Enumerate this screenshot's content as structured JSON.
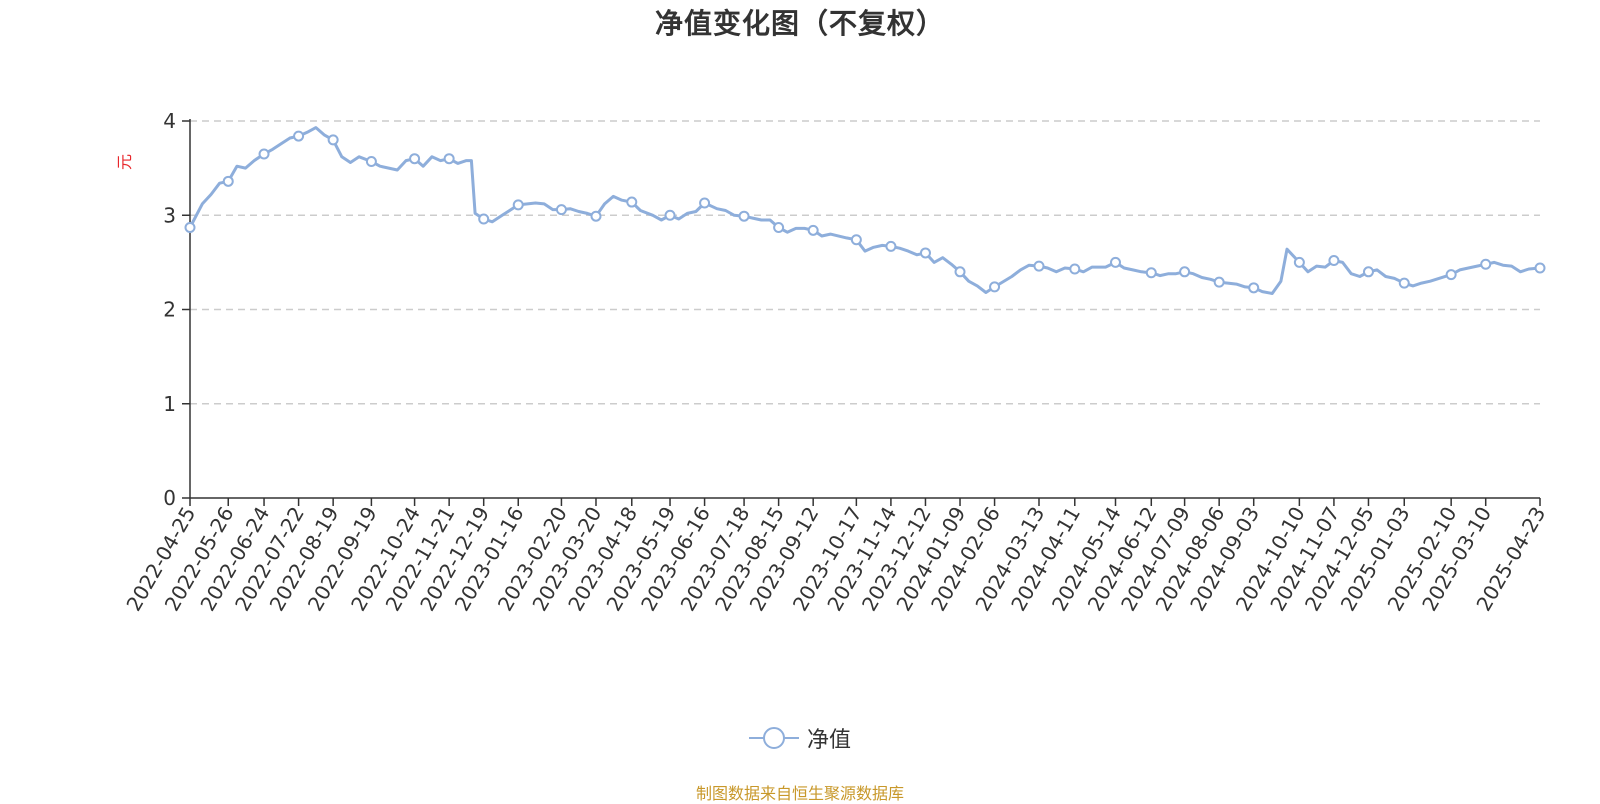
{
  "chart_data": {
    "type": "line",
    "title": "净值变化图（不复权）",
    "y_unit": "元",
    "ylim": [
      0,
      4
    ],
    "y_ticks": [
      0,
      1,
      2,
      3,
      4
    ],
    "grid": "horizontal dashed",
    "legend_position": "bottom-center",
    "x_tick_labels": [
      "2022-04-25",
      "2022-05-26",
      "2022-06-24",
      "2022-07-22",
      "2022-08-19",
      "2022-09-19",
      "2022-10-24",
      "2022-11-21",
      "2022-12-19",
      "2023-01-16",
      "2023-02-20",
      "2023-03-20",
      "2023-04-18",
      "2023-05-19",
      "2023-06-16",
      "2023-07-18",
      "2023-08-15",
      "2023-09-12",
      "2023-10-17",
      "2023-11-14",
      "2023-12-12",
      "2024-01-09",
      "2024-02-06",
      "2024-03-13",
      "2024-04-11",
      "2024-05-14",
      "2024-06-12",
      "2024-07-09",
      "2024-08-06",
      "2024-09-03",
      "2024-10-10",
      "2024-11-07",
      "2024-12-05",
      "2025-01-03",
      "2025-02-10",
      "2025-03-10",
      "2025-04-23"
    ],
    "series": [
      {
        "name": "净值",
        "color": "#8eaedb",
        "x": [
          "2022-04-25",
          "2022-05-05",
          "2022-05-12",
          "2022-05-19",
          "2022-05-26",
          "2022-06-02",
          "2022-06-09",
          "2022-06-16",
          "2022-06-24",
          "2022-07-01",
          "2022-07-08",
          "2022-07-15",
          "2022-07-22",
          "2022-07-29",
          "2022-08-05",
          "2022-08-12",
          "2022-08-19",
          "2022-08-26",
          "2022-09-02",
          "2022-09-09",
          "2022-09-19",
          "2022-09-26",
          "2022-10-10",
          "2022-10-17",
          "2022-10-24",
          "2022-10-31",
          "2022-11-07",
          "2022-11-14",
          "2022-11-21",
          "2022-11-28",
          "2022-12-05",
          "2022-12-09",
          "2022-12-12",
          "2022-12-19",
          "2022-12-26",
          "2023-01-03",
          "2023-01-16",
          "2023-01-30",
          "2023-02-06",
          "2023-02-13",
          "2023-02-20",
          "2023-02-27",
          "2023-03-06",
          "2023-03-13",
          "2023-03-20",
          "2023-03-27",
          "2023-04-03",
          "2023-04-10",
          "2023-04-18",
          "2023-04-25",
          "2023-05-05",
          "2023-05-12",
          "2023-05-19",
          "2023-05-26",
          "2023-06-02",
          "2023-06-09",
          "2023-06-16",
          "2023-06-26",
          "2023-07-03",
          "2023-07-10",
          "2023-07-18",
          "2023-07-25",
          "2023-08-01",
          "2023-08-08",
          "2023-08-15",
          "2023-08-22",
          "2023-08-29",
          "2023-09-05",
          "2023-09-12",
          "2023-09-19",
          "2023-09-26",
          "2023-10-09",
          "2023-10-17",
          "2023-10-24",
          "2023-10-31",
          "2023-11-07",
          "2023-11-14",
          "2023-11-21",
          "2023-11-28",
          "2023-12-05",
          "2023-12-12",
          "2023-12-19",
          "2023-12-26",
          "2024-01-02",
          "2024-01-09",
          "2024-01-16",
          "2024-01-23",
          "2024-01-30",
          "2024-02-06",
          "2024-02-20",
          "2024-02-27",
          "2024-03-05",
          "2024-03-13",
          "2024-03-20",
          "2024-03-27",
          "2024-04-03",
          "2024-04-11",
          "2024-04-18",
          "2024-04-25",
          "2024-05-06",
          "2024-05-14",
          "2024-05-21",
          "2024-05-28",
          "2024-06-04",
          "2024-06-12",
          "2024-06-19",
          "2024-06-26",
          "2024-07-02",
          "2024-07-09",
          "2024-07-16",
          "2024-07-23",
          "2024-07-30",
          "2024-08-06",
          "2024-08-13",
          "2024-08-20",
          "2024-08-27",
          "2024-09-03",
          "2024-09-10",
          "2024-09-18",
          "2024-09-25",
          "2024-09-30",
          "2024-10-10",
          "2024-10-17",
          "2024-10-24",
          "2024-10-31",
          "2024-11-07",
          "2024-11-14",
          "2024-11-21",
          "2024-11-28",
          "2024-12-05",
          "2024-12-12",
          "2024-12-19",
          "2024-12-26",
          "2025-01-03",
          "2025-01-10",
          "2025-01-17",
          "2025-01-24",
          "2025-02-10",
          "2025-02-17",
          "2025-02-24",
          "2025-03-03",
          "2025-03-10",
          "2025-03-17",
          "2025-03-24",
          "2025-03-31",
          "2025-04-07",
          "2025-04-14",
          "2025-04-23"
        ],
        "values": [
          2.87,
          3.12,
          3.22,
          3.34,
          3.36,
          3.52,
          3.5,
          3.58,
          3.65,
          3.7,
          3.76,
          3.82,
          3.84,
          3.88,
          3.93,
          3.85,
          3.8,
          3.62,
          3.56,
          3.62,
          3.57,
          3.52,
          3.48,
          3.58,
          3.6,
          3.52,
          3.62,
          3.58,
          3.6,
          3.55,
          3.58,
          3.58,
          3.02,
          2.96,
          2.93,
          3.0,
          3.11,
          3.13,
          3.12,
          3.06,
          3.06,
          3.07,
          3.04,
          3.02,
          2.99,
          3.12,
          3.2,
          3.16,
          3.14,
          3.05,
          3.0,
          2.95,
          3.0,
          2.96,
          3.02,
          3.04,
          3.13,
          3.07,
          3.05,
          3.0,
          2.99,
          2.97,
          2.95,
          2.95,
          2.87,
          2.82,
          2.86,
          2.86,
          2.84,
          2.78,
          2.8,
          2.76,
          2.74,
          2.62,
          2.66,
          2.68,
          2.67,
          2.65,
          2.62,
          2.58,
          2.6,
          2.5,
          2.55,
          2.48,
          2.4,
          2.3,
          2.25,
          2.18,
          2.24,
          2.35,
          2.42,
          2.47,
          2.46,
          2.44,
          2.4,
          2.44,
          2.43,
          2.4,
          2.45,
          2.45,
          2.5,
          2.44,
          2.42,
          2.4,
          2.39,
          2.36,
          2.38,
          2.38,
          2.4,
          2.38,
          2.34,
          2.32,
          2.29,
          2.28,
          2.27,
          2.24,
          2.23,
          2.19,
          2.17,
          2.3,
          2.64,
          2.5,
          2.4,
          2.46,
          2.45,
          2.52,
          2.5,
          2.38,
          2.35,
          2.4,
          2.42,
          2.35,
          2.33,
          2.28,
          2.25,
          2.28,
          2.3,
          2.37,
          2.42,
          2.44,
          2.46,
          2.48,
          2.5,
          2.47,
          2.46,
          2.4,
          2.43,
          2.44
        ]
      }
    ]
  },
  "legend": {
    "label": "净值"
  },
  "source_note": "制图数据来自恒生聚源数据库"
}
